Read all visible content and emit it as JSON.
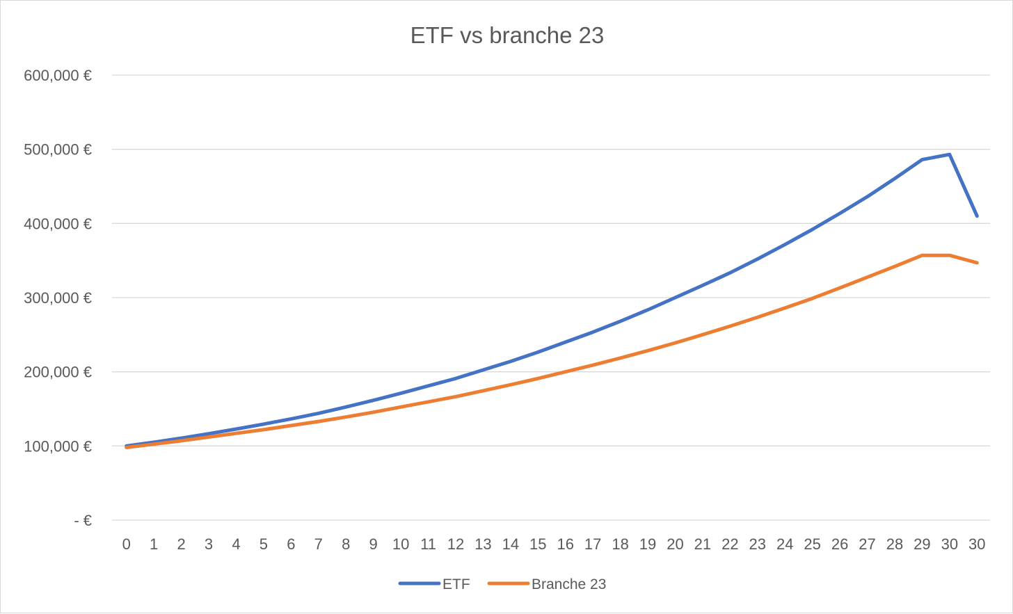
{
  "chart_data": {
    "type": "line",
    "title": "ETF vs branche 23",
    "xlabel": "",
    "ylabel": "",
    "categories": [
      "0",
      "1",
      "2",
      "3",
      "4",
      "5",
      "6",
      "7",
      "8",
      "9",
      "10",
      "11",
      "12",
      "13",
      "14",
      "15",
      "16",
      "17",
      "18",
      "19",
      "20",
      "21",
      "22",
      "23",
      "24",
      "25",
      "26",
      "27",
      "28",
      "29",
      "30",
      "30"
    ],
    "y_tick_labels": [
      "-  €",
      "100,000 €",
      "200,000 €",
      "300,000 €",
      "400,000 €",
      "500,000 €",
      "600,000 €"
    ],
    "y_tick_values": [
      0,
      100000,
      200000,
      300000,
      400000,
      500000,
      600000
    ],
    "ylim": [
      0,
      600000
    ],
    "grid": true,
    "legend_position": "bottom",
    "series": [
      {
        "name": "ETF",
        "color": "#4472c4",
        "values": [
          100000,
          105000,
          110500,
          116500,
          122800,
          129500,
          136500,
          144000,
          152500,
          161500,
          171000,
          181000,
          191000,
          202500,
          214000,
          226500,
          240000,
          253500,
          268000,
          283500,
          300000,
          316500,
          333500,
          352000,
          371500,
          392000,
          413500,
          436000,
          460500,
          486000,
          493000,
          410000
        ]
      },
      {
        "name": "Branche 23",
        "color": "#ed7d31",
        "values": [
          98000,
          102500,
          107000,
          112000,
          117000,
          122000,
          127500,
          133000,
          139000,
          145500,
          152500,
          159500,
          166500,
          174500,
          182500,
          191000,
          200000,
          209000,
          218500,
          228500,
          239000,
          250000,
          261500,
          273500,
          286000,
          299000,
          313000,
          327500,
          342000,
          357000,
          357000,
          347000
        ]
      }
    ]
  }
}
